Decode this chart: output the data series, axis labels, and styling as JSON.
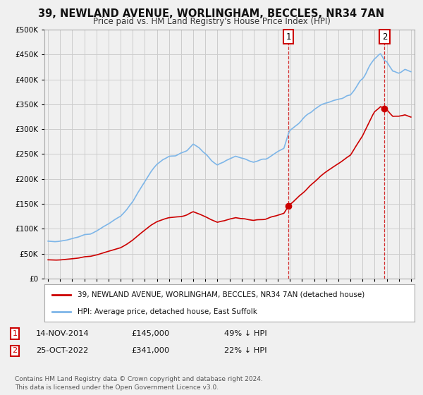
{
  "title": "39, NEWLAND AVENUE, WORLINGHAM, BECCLES, NR34 7AN",
  "subtitle": "Price paid vs. HM Land Registry's House Price Index (HPI)",
  "title_fontsize": 10.5,
  "subtitle_fontsize": 8.5,
  "background_color": "#f0f0f0",
  "plot_bg_color": "#f0f0f0",
  "grid_color": "#cccccc",
  "red_color": "#cc0000",
  "blue_color": "#7eb6e8",
  "sale1_date": 2014.87,
  "sale1_price": 145000,
  "sale1_label": "1",
  "sale2_date": 2022.82,
  "sale2_price": 341000,
  "sale2_label": "2",
  "legend_entries": [
    "39, NEWLAND AVENUE, WORLINGHAM, BECCLES, NR34 7AN (detached house)",
    "HPI: Average price, detached house, East Suffolk"
  ],
  "footer": "Contains HM Land Registry data © Crown copyright and database right 2024.\nThis data is licensed under the Open Government Licence v3.0.",
  "ylim": [
    0,
    500000
  ],
  "xlim_start": 1994.7,
  "xlim_end": 2025.3
}
